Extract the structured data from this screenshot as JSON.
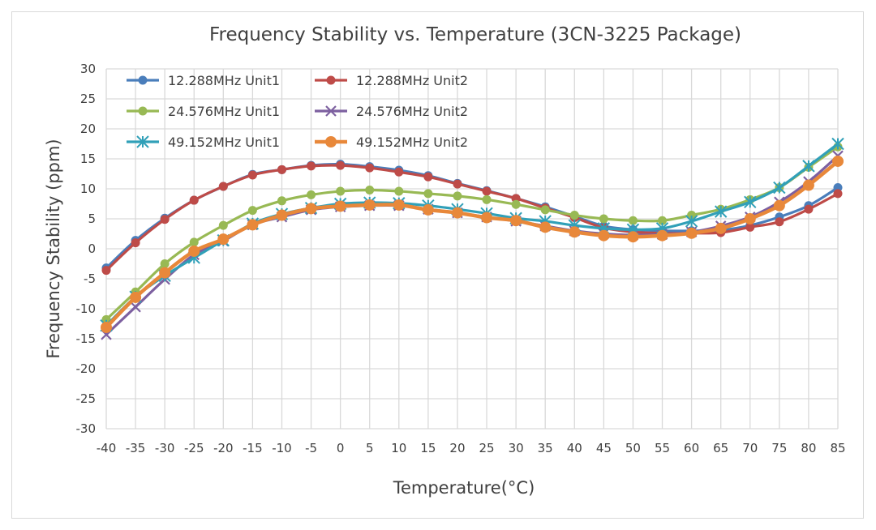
{
  "chart_data": {
    "type": "line",
    "title": "Frequency Stability vs. Temperature (3CN-3225 Package)",
    "xlabel": "Temperature(°C)",
    "ylabel": "Frequency Stability (ppm)",
    "ylim": [
      -30,
      30
    ],
    "yticks": [
      "30",
      "25",
      "20",
      "15",
      "10",
      "5",
      "0",
      "-5",
      "-10",
      "-15",
      "-20",
      "-25",
      "-30"
    ],
    "x": [
      -40,
      -35,
      -30,
      -25,
      -20,
      -15,
      -10,
      -5,
      0,
      5,
      10,
      15,
      20,
      25,
      30,
      35,
      40,
      45,
      50,
      55,
      60,
      65,
      70,
      75,
      80,
      85
    ],
    "grid": true,
    "legend": "top-left",
    "series": [
      {
        "name": "12.288MHz Unit1",
        "color": "#4a7ebb",
        "marker": "circle",
        "values": [
          -3.2,
          1.4,
          5.1,
          8.1,
          10.4,
          12.4,
          13.2,
          13.9,
          14.1,
          13.7,
          13.1,
          12.2,
          10.9,
          9.7,
          8.4,
          7.0,
          5.4,
          3.8,
          3.2,
          3.0,
          3.0,
          3.1,
          3.9,
          5.3,
          7.2,
          10.2
        ]
      },
      {
        "name": "12.288MHz Unit2",
        "color": "#be4b48",
        "marker": "circle",
        "values": [
          -3.6,
          1.0,
          4.9,
          8.1,
          10.4,
          12.3,
          13.2,
          13.8,
          13.9,
          13.5,
          12.8,
          12.0,
          10.8,
          9.6,
          8.4,
          6.8,
          5.2,
          3.5,
          2.8,
          2.6,
          2.6,
          2.7,
          3.6,
          4.5,
          6.6,
          9.2
        ]
      },
      {
        "name": "24.576MHz Unit1",
        "color": "#98b954",
        "marker": "circle",
        "values": [
          -11.8,
          -7.2,
          -2.5,
          1.1,
          3.9,
          6.4,
          8.0,
          9.0,
          9.6,
          9.8,
          9.6,
          9.2,
          8.8,
          8.2,
          7.4,
          6.5,
          5.6,
          5.0,
          4.7,
          4.7,
          5.6,
          6.6,
          8.2,
          10.2,
          13.6,
          17.0
        ]
      },
      {
        "name": "24.576MHz Unit2",
        "color": "#7d60a0",
        "marker": "x",
        "values": [
          -14.3,
          -9.7,
          -5.1,
          -1.0,
          1.3,
          4.0,
          5.3,
          6.5,
          7.0,
          7.2,
          7.2,
          6.6,
          6.0,
          5.3,
          4.6,
          3.8,
          3.0,
          2.5,
          2.3,
          2.4,
          2.8,
          3.8,
          5.3,
          7.8,
          11.2,
          15.5
        ]
      },
      {
        "name": "49.152MHz Unit1",
        "color": "#31a0b8",
        "marker": "asterisk",
        "values": [
          -12.8,
          -8.0,
          -4.5,
          -1.5,
          1.4,
          4.2,
          5.8,
          6.8,
          7.5,
          7.7,
          7.6,
          7.2,
          6.6,
          5.9,
          5.1,
          4.6,
          3.9,
          3.4,
          3.2,
          3.4,
          4.6,
          6.2,
          7.8,
          10.2,
          13.8,
          17.5
        ]
      },
      {
        "name": "49.152MHz Unit2",
        "color": "#e8883a",
        "marker": "circle",
        "values": [
          -13.1,
          -8.1,
          -4.0,
          -0.4,
          1.6,
          4.0,
          5.6,
          6.7,
          7.1,
          7.3,
          7.3,
          6.5,
          6.0,
          5.2,
          4.7,
          3.6,
          2.8,
          2.2,
          2.0,
          2.2,
          2.6,
          3.4,
          5.0,
          7.2,
          10.6,
          14.6
        ]
      }
    ]
  }
}
